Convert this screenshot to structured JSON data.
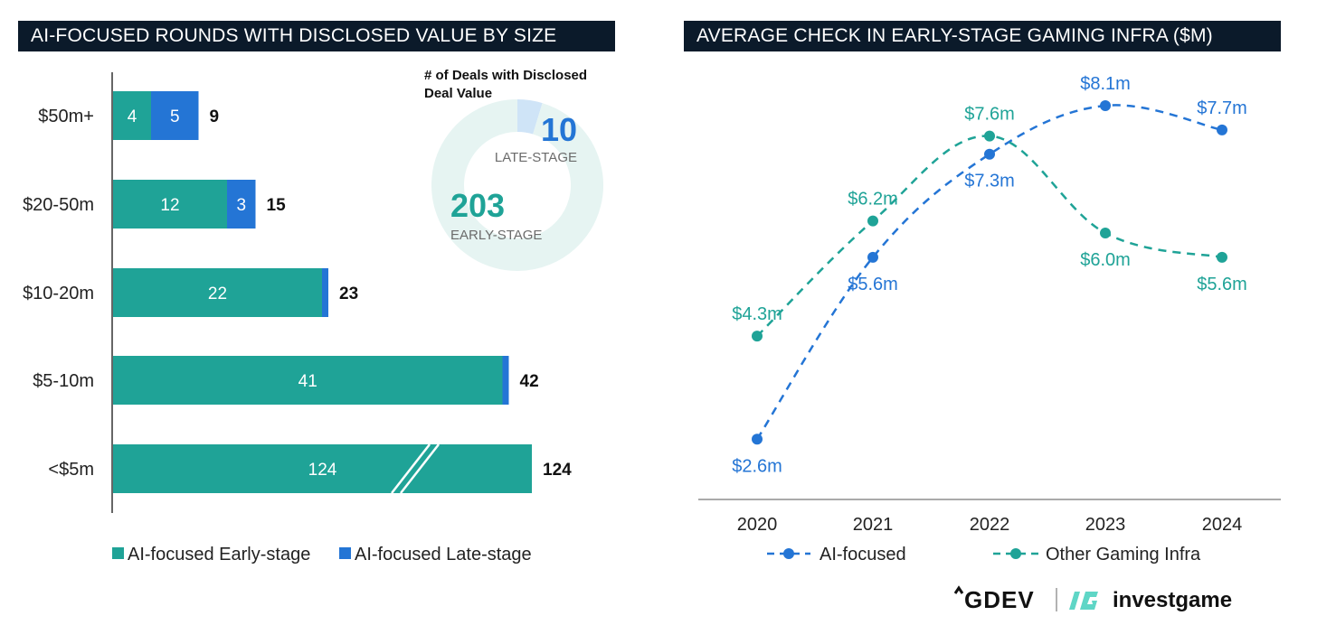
{
  "chart_data": [
    {
      "type": "bar",
      "orientation": "horizontal",
      "stacked": true,
      "title": "AI-FOCUSED ROUNDS WITH DISCLOSED VALUE BY SIZE",
      "categories": [
        "$50m+",
        "$20-50m",
        "$10-20m",
        "$5-10m",
        "<$5m"
      ],
      "series": [
        {
          "name": "AI-focused Early-stage",
          "values": [
            4,
            12,
            22,
            41,
            124
          ],
          "labels": [
            "4",
            "12",
            "22",
            "41",
            "124"
          ]
        },
        {
          "name": "AI-focused Late-stage",
          "values": [
            5,
            3,
            1,
            1,
            0
          ],
          "labels": [
            "5",
            "3",
            "",
            "",
            ""
          ]
        }
      ],
      "totals": [
        "9",
        "15",
        "23",
        "42",
        "124"
      ],
      "axis_break": "<$5m",
      "colors": {
        "early": "#1fa397",
        "late": "#2475d5"
      },
      "legend_placement": "bottom",
      "inset_donut": {
        "title": "# of Deals with Disclosed Deal Value",
        "segments": [
          {
            "name": "LATE-STAGE",
            "value": 10,
            "label": "10",
            "color": "#2475d5"
          },
          {
            "name": "EARLY-STAGE",
            "value": 203,
            "label": "203",
            "color": "#1fa397"
          }
        ]
      }
    },
    {
      "type": "line",
      "title": "AVERAGE CHECK IN EARLY-STAGE GAMING INFRA ($M)",
      "x": [
        "2020",
        "2021",
        "2022",
        "2023",
        "2024"
      ],
      "series": [
        {
          "name": "AI-focused",
          "values": [
            2.6,
            5.6,
            7.3,
            8.1,
            7.7
          ],
          "labels": [
            "$2.6m",
            "$5.6m",
            "$7.3m",
            "$8.1m",
            "$7.7m"
          ],
          "color": "#2475d5"
        },
        {
          "name": "Other Gaming Infra",
          "values": [
            4.3,
            6.2,
            7.6,
            6.0,
            5.6
          ],
          "labels": [
            "$4.3m",
            "$6.2m",
            "$7.6m",
            "$6.0m",
            "$5.6m"
          ],
          "color": "#1fa397"
        }
      ],
      "line_style": "dashed",
      "legend_placement": "bottom",
      "ylim": [
        1.8,
        8.8
      ]
    }
  ],
  "logos": {
    "gdev": "GDEV",
    "investgame": "investgame"
  }
}
